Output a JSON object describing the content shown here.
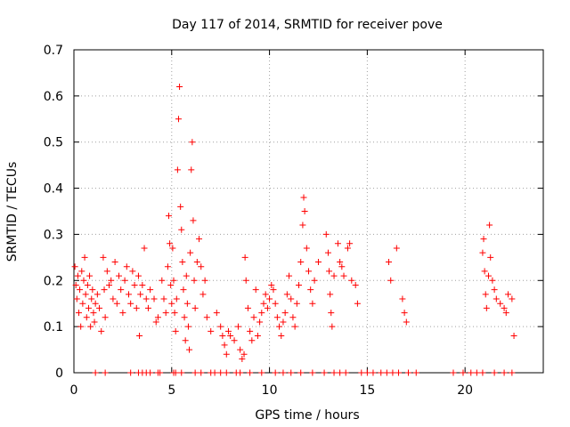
{
  "chart_data": {
    "type": "scatter",
    "title": "Day 117 of 2014, SRMTID for receiver pove",
    "xlabel": "GPS time / hours",
    "ylabel": "SRMTID / TECUs",
    "xlim": [
      0,
      24
    ],
    "ylim": [
      0,
      0.7
    ],
    "xticks": [
      0,
      5,
      10,
      15,
      20
    ],
    "yticks": [
      0,
      0.1,
      0.2,
      0.3,
      0.4,
      0.5,
      0.6,
      0.7
    ],
    "ytick_labels": [
      "0",
      "0.1",
      "0.2",
      "0.3",
      "0.4",
      "0.5",
      "0.6",
      "0.7"
    ],
    "grid": true,
    "marker": "+",
    "color": "#ff0000",
    "series": [
      {
        "name": "SRMTID",
        "points": [
          [
            0.05,
            0.23
          ],
          [
            0.1,
            0.19
          ],
          [
            0.15,
            0.16
          ],
          [
            0.2,
            0.21
          ],
          [
            0.25,
            0.13
          ],
          [
            0.3,
            0.18
          ],
          [
            0.35,
            0.1
          ],
          [
            0.4,
            0.22
          ],
          [
            0.45,
            0.15
          ],
          [
            0.5,
            0.2
          ],
          [
            0.55,
            0.25
          ],
          [
            0.6,
            0.17
          ],
          [
            0.65,
            0.12
          ],
          [
            0.7,
            0.19
          ],
          [
            0.75,
            0.14
          ],
          [
            0.8,
            0.21
          ],
          [
            0.85,
            0.1
          ],
          [
            0.9,
            0.16
          ],
          [
            0.95,
            0.18
          ],
          [
            1.0,
            0.13
          ],
          [
            1.05,
            0.11
          ],
          [
            1.1,
            0.15
          ],
          [
            1.2,
            0.17
          ],
          [
            1.3,
            0.14
          ],
          [
            1.4,
            0.09
          ],
          [
            1.5,
            0.25
          ],
          [
            1.55,
            0.18
          ],
          [
            1.6,
            0.12
          ],
          [
            1.7,
            0.22
          ],
          [
            1.8,
            0.19
          ],
          [
            1.9,
            0.2
          ],
          [
            2.0,
            0.16
          ],
          [
            2.1,
            0.24
          ],
          [
            2.2,
            0.15
          ],
          [
            2.3,
            0.21
          ],
          [
            2.4,
            0.18
          ],
          [
            2.5,
            0.13
          ],
          [
            2.6,
            0.2
          ],
          [
            2.7,
            0.23
          ],
          [
            2.8,
            0.17
          ],
          [
            2.9,
            0.15
          ],
          [
            3.0,
            0.22
          ],
          [
            3.1,
            0.19
          ],
          [
            3.2,
            0.14
          ],
          [
            3.3,
            0.21
          ],
          [
            3.35,
            0.08
          ],
          [
            3.4,
            0.17
          ],
          [
            3.5,
            0.19
          ],
          [
            3.6,
            0.27
          ],
          [
            3.7,
            0.16
          ],
          [
            3.8,
            0.14
          ],
          [
            3.9,
            0.18
          ],
          [
            4.1,
            0.16
          ],
          [
            4.2,
            0.11
          ],
          [
            4.3,
            0.12
          ],
          [
            4.5,
            0.2
          ],
          [
            4.6,
            0.16
          ],
          [
            4.7,
            0.13
          ],
          [
            4.8,
            0.23
          ],
          [
            4.85,
            0.34
          ],
          [
            4.9,
            0.28
          ],
          [
            4.95,
            0.19
          ],
          [
            5.0,
            0.15
          ],
          [
            5.05,
            0.27
          ],
          [
            5.1,
            0.2
          ],
          [
            5.15,
            0.13
          ],
          [
            5.2,
            0.09
          ],
          [
            5.25,
            0.16
          ],
          [
            5.3,
            0.44
          ],
          [
            5.35,
            0.55
          ],
          [
            5.4,
            0.62
          ],
          [
            5.45,
            0.36
          ],
          [
            5.5,
            0.31
          ],
          [
            5.55,
            0.24
          ],
          [
            5.6,
            0.18
          ],
          [
            5.65,
            0.12
          ],
          [
            5.7,
            0.07
          ],
          [
            5.75,
            0.21
          ],
          [
            5.8,
            0.15
          ],
          [
            5.85,
            0.1
          ],
          [
            5.9,
            0.05
          ],
          [
            5.95,
            0.26
          ],
          [
            6.0,
            0.44
          ],
          [
            6.05,
            0.5
          ],
          [
            6.1,
            0.33
          ],
          [
            6.15,
            0.2
          ],
          [
            6.2,
            0.14
          ],
          [
            6.3,
            0.24
          ],
          [
            6.4,
            0.29
          ],
          [
            6.5,
            0.23
          ],
          [
            6.6,
            0.17
          ],
          [
            6.7,
            0.2
          ],
          [
            6.8,
            0.12
          ],
          [
            7.0,
            0.09
          ],
          [
            7.3,
            0.13
          ],
          [
            7.5,
            0.1
          ],
          [
            7.6,
            0.08
          ],
          [
            7.7,
            0.06
          ],
          [
            7.8,
            0.04
          ],
          [
            7.9,
            0.09
          ],
          [
            8.0,
            0.08
          ],
          [
            8.2,
            0.07
          ],
          [
            8.4,
            0.1
          ],
          [
            8.5,
            0.05
          ],
          [
            8.6,
            0.03
          ],
          [
            8.7,
            0.04
          ],
          [
            8.75,
            0.25
          ],
          [
            8.8,
            0.2
          ],
          [
            8.9,
            0.14
          ],
          [
            9.0,
            0.09
          ],
          [
            9.1,
            0.07
          ],
          [
            9.2,
            0.12
          ],
          [
            9.3,
            0.18
          ],
          [
            9.4,
            0.08
          ],
          [
            9.5,
            0.11
          ],
          [
            9.6,
            0.13
          ],
          [
            9.7,
            0.15
          ],
          [
            9.8,
            0.17
          ],
          [
            9.9,
            0.14
          ],
          [
            10.0,
            0.16
          ],
          [
            10.1,
            0.19
          ],
          [
            10.2,
            0.18
          ],
          [
            10.3,
            0.15
          ],
          [
            10.4,
            0.12
          ],
          [
            10.5,
            0.1
          ],
          [
            10.6,
            0.08
          ],
          [
            10.7,
            0.11
          ],
          [
            10.8,
            0.13
          ],
          [
            10.9,
            0.17
          ],
          [
            11.0,
            0.21
          ],
          [
            11.1,
            0.16
          ],
          [
            11.2,
            0.12
          ],
          [
            11.3,
            0.1
          ],
          [
            11.4,
            0.15
          ],
          [
            11.5,
            0.19
          ],
          [
            11.6,
            0.24
          ],
          [
            11.7,
            0.32
          ],
          [
            11.75,
            0.38
          ],
          [
            11.8,
            0.35
          ],
          [
            11.9,
            0.27
          ],
          [
            12.0,
            0.22
          ],
          [
            12.1,
            0.18
          ],
          [
            12.2,
            0.15
          ],
          [
            12.3,
            0.2
          ],
          [
            12.5,
            0.24
          ],
          [
            12.9,
            0.3
          ],
          [
            13.0,
            0.26
          ],
          [
            13.05,
            0.22
          ],
          [
            13.1,
            0.17
          ],
          [
            13.15,
            0.13
          ],
          [
            13.2,
            0.1
          ],
          [
            13.3,
            0.21
          ],
          [
            13.5,
            0.28
          ],
          [
            13.6,
            0.24
          ],
          [
            13.7,
            0.23
          ],
          [
            13.8,
            0.21
          ],
          [
            14.0,
            0.27
          ],
          [
            14.1,
            0.28
          ],
          [
            14.2,
            0.2
          ],
          [
            14.4,
            0.19
          ],
          [
            14.5,
            0.15
          ],
          [
            16.1,
            0.24
          ],
          [
            16.2,
            0.2
          ],
          [
            16.5,
            0.27
          ],
          [
            16.8,
            0.16
          ],
          [
            16.9,
            0.13
          ],
          [
            17.0,
            0.11
          ],
          [
            20.9,
            0.26
          ],
          [
            20.95,
            0.29
          ],
          [
            21.0,
            0.22
          ],
          [
            21.05,
            0.17
          ],
          [
            21.1,
            0.14
          ],
          [
            21.2,
            0.21
          ],
          [
            21.25,
            0.32
          ],
          [
            21.3,
            0.25
          ],
          [
            21.4,
            0.2
          ],
          [
            21.5,
            0.18
          ],
          [
            21.6,
            0.16
          ],
          [
            21.8,
            0.15
          ],
          [
            22.0,
            0.14
          ],
          [
            22.1,
            0.13
          ],
          [
            22.2,
            0.17
          ],
          [
            22.4,
            0.16
          ],
          [
            22.5,
            0.08
          ]
        ]
      }
    ],
    "zero_points_x": [
      1.1,
      1.6,
      2.9,
      3.3,
      3.5,
      3.7,
      3.9,
      4.3,
      4.4,
      5.1,
      5.2,
      5.5,
      6.2,
      6.5,
      7.0,
      7.2,
      7.5,
      7.8,
      8.3,
      8.5,
      9.0,
      9.6,
      10.3,
      10.7,
      11.1,
      11.6,
      12.2,
      12.8,
      13.3,
      13.6,
      13.9,
      14.7,
      15.0,
      15.3,
      15.7,
      16.0,
      16.3,
      16.6,
      17.1,
      17.5,
      19.4,
      19.9,
      20.3,
      20.6,
      20.9,
      21.5,
      22.0,
      22.4
    ]
  }
}
